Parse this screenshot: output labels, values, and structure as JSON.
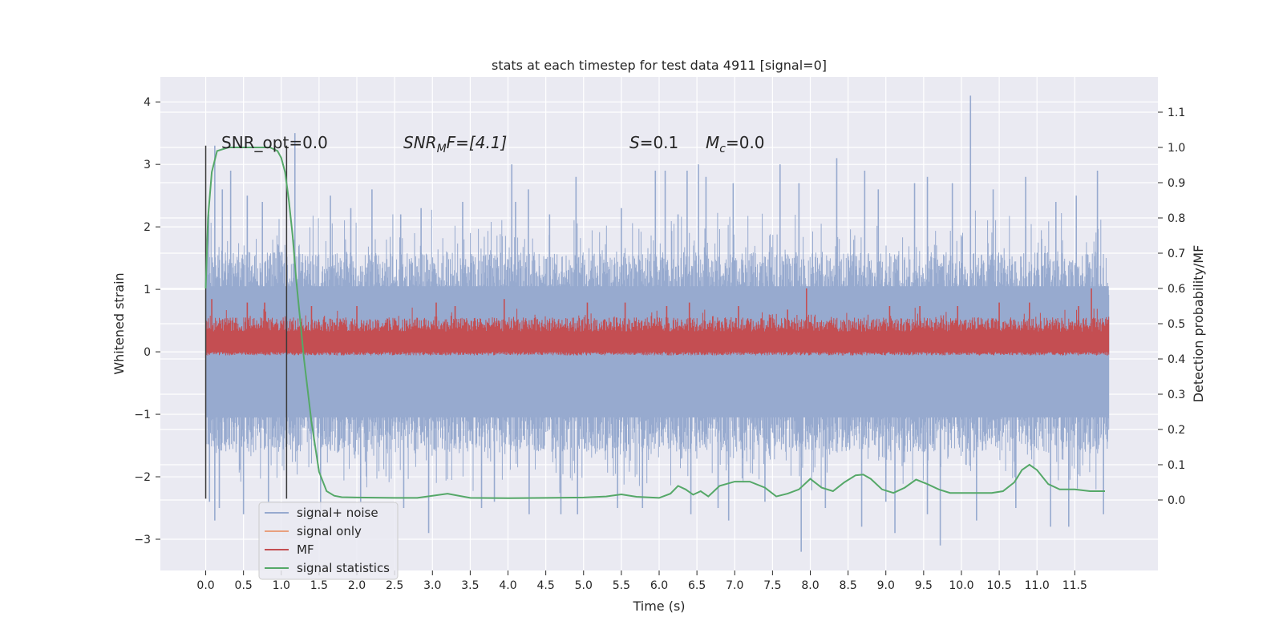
{
  "chart_data": {
    "type": "line",
    "title": "stats at each timestep for test data 4911 [signal=0]",
    "xlabel": "Time (s)",
    "ylabel": "Whitened strain",
    "ylabel_right": "Detection probability/MF",
    "xlim": [
      -0.6,
      12.6
    ],
    "ylim": [
      -3.5,
      4.4
    ],
    "ylim_right": [
      -0.2,
      1.2
    ],
    "x_ticks": [
      "0.0",
      "0.5",
      "1.0",
      "1.5",
      "2.0",
      "2.5",
      "3.0",
      "3.5",
      "4.0",
      "4.5",
      "5.0",
      "5.5",
      "6.0",
      "6.5",
      "7.0",
      "7.5",
      "8.0",
      "8.5",
      "9.0",
      "9.5",
      "10.0",
      "10.5",
      "11.0",
      "11.5"
    ],
    "y_ticks": [
      "−3",
      "−2",
      "−1",
      "0",
      "1",
      "2",
      "3",
      "4"
    ],
    "y_ticks_right": [
      "0.0",
      "0.1",
      "0.2",
      "0.3",
      "0.4",
      "0.5",
      "0.6",
      "0.7",
      "0.8",
      "0.9",
      "1.0",
      "1.1"
    ],
    "grid": true,
    "annotations": {
      "snr_opt": "SNR_opt=0.0",
      "snr_mf_name": "SNR",
      "snr_mf_sub": "M",
      "snr_mf_rest": "F=[4.1]",
      "s_name": "S",
      "s_rest": "=0.1",
      "mc_name": "M",
      "mc_sub": "c",
      "mc_rest": "=0.0"
    },
    "vlines": [
      0.0,
      1.07
    ],
    "series": [
      {
        "name": "signal+ noise",
        "color": "#97aacf",
        "axis": "left",
        "x_range": [
          0.0,
          11.95
        ],
        "envelope_upper_typical": 1.6,
        "envelope_lower_typical": -1.6,
        "peaks_x": [
          0.04,
          0.12,
          0.22,
          0.33,
          0.55,
          0.75,
          1.18,
          1.65,
          1.92,
          2.2,
          2.58,
          2.85,
          3.4,
          4.05,
          4.1,
          4.27,
          4.55,
          4.9,
          5.5,
          5.95,
          6.08,
          6.25,
          6.37,
          6.52,
          6.62,
          6.98,
          7.6,
          7.85,
          8.35,
          8.72,
          8.9,
          9.38,
          9.55,
          9.88,
          10.12,
          10.42,
          10.85,
          11.25,
          11.52,
          11.8
        ],
        "peaks_y": [
          2.2,
          3.3,
          2.6,
          2.9,
          2.5,
          2.4,
          3.5,
          2.5,
          2.3,
          2.6,
          2.2,
          2.3,
          2.4,
          3.0,
          2.4,
          2.6,
          2.2,
          2.8,
          2.3,
          2.9,
          2.9,
          2.2,
          2.9,
          3.0,
          2.8,
          2.7,
          3.0,
          2.7,
          3.1,
          2.9,
          2.6,
          2.7,
          2.8,
          2.7,
          4.1,
          2.6,
          2.8,
          2.4,
          2.5,
          2.9
        ],
        "troughs_x": [
          0.05,
          0.12,
          0.18,
          0.5,
          0.83,
          1.52,
          2.05,
          2.62,
          2.95,
          3.65,
          3.82,
          4.28,
          4.7,
          4.92,
          5.45,
          5.78,
          6.42,
          6.78,
          6.92,
          7.4,
          7.88,
          8.2,
          8.68,
          9.0,
          9.12,
          9.55,
          9.72,
          10.2,
          10.72,
          11.18,
          11.42,
          11.88
        ],
        "troughs_y": [
          -2.4,
          -2.7,
          -2.5,
          -2.6,
          -2.4,
          -2.7,
          -2.4,
          -2.5,
          -2.9,
          -2.5,
          -2.4,
          -2.6,
          -2.6,
          -2.6,
          -2.5,
          -2.5,
          -2.6,
          -2.5,
          -2.7,
          -2.4,
          -3.2,
          -2.5,
          -2.8,
          -2.4,
          -2.9,
          -2.6,
          -3.1,
          -2.7,
          -2.5,
          -2.8,
          -2.8,
          -2.6
        ]
      },
      {
        "name": "signal only",
        "color": "#e8a07f",
        "axis": "left",
        "x": [],
        "y": []
      },
      {
        "name": "MF",
        "color": "#c44e52",
        "axis": "right",
        "x_range": [
          0.0,
          11.95
        ],
        "band_upper_typical": 0.5,
        "band_lower_typical": 0.42,
        "min_value": 0.41,
        "peaks_x": [
          0.08,
          0.55,
          0.78,
          1.4,
          2.0,
          3.05,
          3.3,
          3.95,
          5.05,
          5.55,
          6.1,
          6.4,
          7.05,
          7.7,
          7.95,
          9.05,
          9.45,
          9.95,
          10.5,
          10.9,
          11.55,
          11.72
        ],
        "peaks_y": [
          0.57,
          0.56,
          0.56,
          0.55,
          0.55,
          0.56,
          0.55,
          0.57,
          0.56,
          0.56,
          0.55,
          0.56,
          0.55,
          0.54,
          0.6,
          0.55,
          0.55,
          0.55,
          0.56,
          0.56,
          0.55,
          0.6
        ]
      },
      {
        "name": "signal statistics",
        "color": "#55a868",
        "axis": "right",
        "x": [
          0.0,
          0.03,
          0.08,
          0.15,
          0.3,
          0.5,
          0.7,
          0.85,
          0.95,
          1.0,
          1.05,
          1.1,
          1.15,
          1.2,
          1.3,
          1.4,
          1.5,
          1.6,
          1.7,
          1.8,
          2.0,
          2.5,
          2.8,
          3.0,
          3.2,
          3.5,
          4.0,
          4.5,
          5.0,
          5.3,
          5.5,
          5.7,
          6.0,
          6.15,
          6.25,
          6.35,
          6.45,
          6.55,
          6.65,
          6.8,
          7.0,
          7.2,
          7.4,
          7.55,
          7.7,
          7.85,
          8.0,
          8.15,
          8.3,
          8.45,
          8.6,
          8.7,
          8.8,
          8.95,
          9.1,
          9.25,
          9.4,
          9.55,
          9.7,
          9.85,
          10.0,
          10.2,
          10.4,
          10.55,
          10.7,
          10.8,
          10.9,
          11.0,
          11.15,
          11.3,
          11.5,
          11.7,
          11.9
        ],
        "y": [
          0.6,
          0.8,
          0.93,
          0.99,
          1.0,
          1.0,
          1.0,
          1.0,
          0.99,
          0.97,
          0.93,
          0.85,
          0.75,
          0.62,
          0.4,
          0.22,
          0.08,
          0.025,
          0.012,
          0.008,
          0.007,
          0.006,
          0.006,
          0.012,
          0.018,
          0.006,
          0.005,
          0.006,
          0.007,
          0.01,
          0.016,
          0.009,
          0.006,
          0.018,
          0.04,
          0.03,
          0.015,
          0.025,
          0.01,
          0.04,
          0.052,
          0.052,
          0.035,
          0.01,
          0.018,
          0.03,
          0.06,
          0.035,
          0.025,
          0.05,
          0.07,
          0.072,
          0.06,
          0.03,
          0.02,
          0.035,
          0.058,
          0.045,
          0.03,
          0.02,
          0.02,
          0.02,
          0.02,
          0.025,
          0.05,
          0.085,
          0.1,
          0.085,
          0.045,
          0.03,
          0.03,
          0.025,
          0.025
        ]
      }
    ],
    "legend": {
      "position": "lower-left",
      "entries": [
        "signal+ noise",
        "signal only",
        "MF",
        "signal statistics"
      ]
    }
  }
}
